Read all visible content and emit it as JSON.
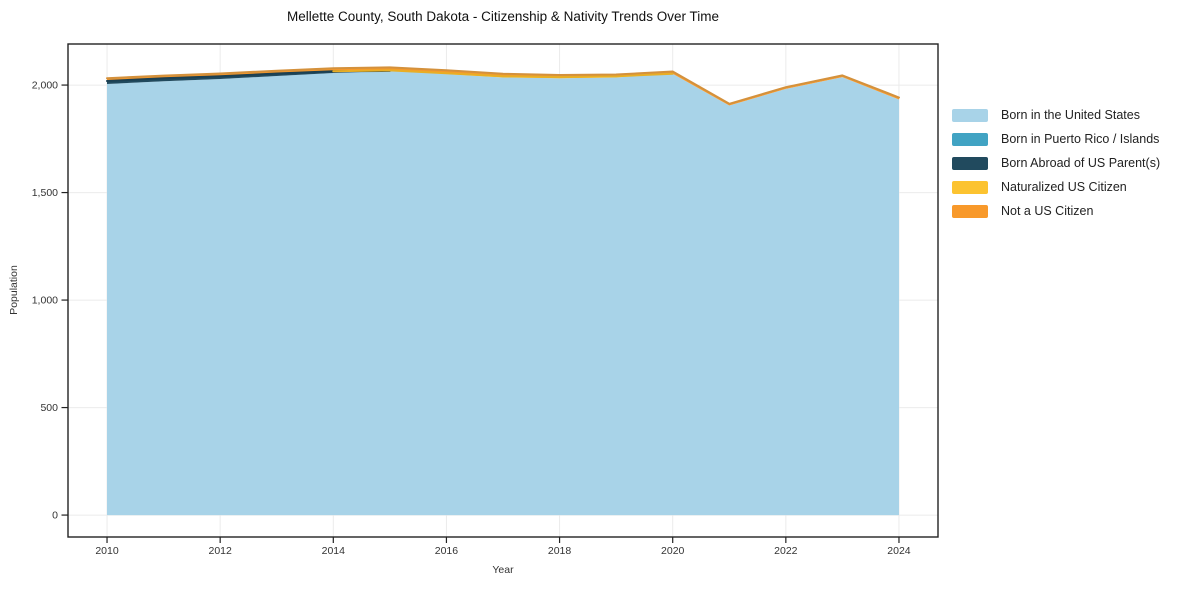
{
  "chart_data": {
    "type": "area",
    "stacked": true,
    "title": "Mellette County, South Dakota - Citizenship & Nativity Trends Over Time",
    "xlabel": "Year",
    "ylabel": "Population",
    "x": [
      2010,
      2011,
      2012,
      2013,
      2014,
      2015,
      2016,
      2017,
      2018,
      2019,
      2020,
      2021,
      2022,
      2023,
      2024
    ],
    "series": [
      {
        "name": "Born in the United States",
        "color": "#a8d3e8",
        "line_color": null,
        "values": [
          2005,
          2018,
          2028,
          2042,
          2056,
          2066,
          2051,
          2035,
          2032,
          2035,
          2053,
          1905,
          1982,
          2037,
          1933
        ]
      },
      {
        "name": "Born in Puerto Rico / Islands",
        "color": "#41a3c3",
        "line_color": "#3b93af",
        "values": [
          0,
          0,
          0,
          0,
          0,
          0,
          0,
          0,
          0,
          0,
          0,
          0,
          0,
          0,
          0
        ]
      },
      {
        "name": "Born Abroad of US Parent(s)",
        "color": "#214a5e",
        "line_color": "#1c4052",
        "values": [
          14,
          14,
          13,
          12,
          8,
          0,
          0,
          0,
          0,
          0,
          0,
          0,
          0,
          0,
          0
        ]
      },
      {
        "name": "Naturalized US Citizen",
        "color": "#fcc330",
        "line_color": "#e8ae25",
        "values": [
          0,
          0,
          0,
          0,
          0,
          2,
          4,
          6,
          5,
          6,
          0,
          0,
          0,
          0,
          0
        ]
      },
      {
        "name": "Not a US Citizen",
        "color": "#f8992a",
        "line_color": "#d4913c",
        "values": [
          13,
          12,
          13,
          13,
          14,
          14,
          14,
          12,
          10,
          8,
          10,
          8,
          8,
          8,
          9
        ]
      }
    ],
    "x_ticks": [
      2010,
      2012,
      2014,
      2016,
      2018,
      2020,
      2022,
      2024
    ],
    "x_tick_labels": [
      "2010",
      "2012",
      "2014",
      "2016",
      "2018",
      "2020",
      "2022",
      "2024"
    ],
    "y_ticks": [
      0,
      500,
      1000,
      1500,
      2000
    ],
    "y_tick_labels": [
      "0",
      "500",
      "1,000",
      "1,500",
      "2,000"
    ],
    "xlim": [
      2009.31,
      2024.69
    ],
    "ylim": [
      -102,
      2191
    ],
    "grid": true,
    "grid_color": "#ebebeb",
    "axis_color": "#222222",
    "tick_label_color": "#333333",
    "background": "#ffffff",
    "legend_position": "right"
  }
}
